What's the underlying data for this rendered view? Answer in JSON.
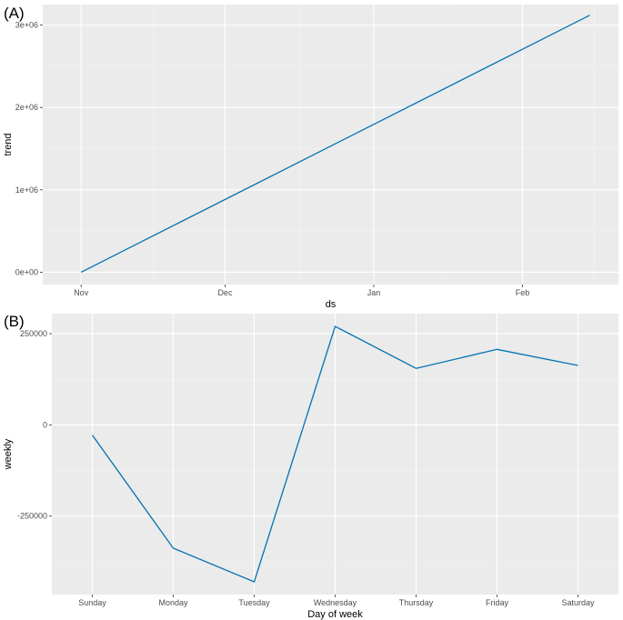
{
  "panels": {
    "a_label": "(A)",
    "b_label": "(B)"
  },
  "chart_data": [
    {
      "type": "line",
      "panel": "(A)",
      "xlabel": "ds",
      "ylabel": "trend",
      "x_tick_labels": [
        "Nov",
        "Dec",
        "Jan",
        "Feb"
      ],
      "x_tick_dates": [
        "2019-11-01",
        "2019-12-01",
        "2020-01-01",
        "2020-02-01"
      ],
      "x_range": [
        "2019-10-24",
        "2020-02-21"
      ],
      "y_tick_values": [
        0,
        1000000,
        2000000,
        3000000
      ],
      "y_tick_labels": [
        "0e+00",
        "1e+06",
        "2e+06",
        "3e+06"
      ],
      "ylim": [
        -150000,
        3250000
      ],
      "grid": true,
      "color": "#0072B2",
      "x": [
        "2019-11-01",
        "2020-02-15"
      ],
      "y": [
        0,
        3120000
      ]
    },
    {
      "type": "line",
      "panel": "(B)",
      "xlabel": "Day of week",
      "ylabel": "weekly",
      "categories": [
        "Sunday",
        "Monday",
        "Tuesday",
        "Wednesday",
        "Thursday",
        "Friday",
        "Saturday"
      ],
      "values": [
        -28000,
        -338000,
        -430000,
        270000,
        155000,
        207000,
        163000
      ],
      "y_tick_values": [
        -250000,
        0,
        250000
      ],
      "y_tick_labels": [
        "-250000",
        "0",
        "250000"
      ],
      "ylim": [
        -465000,
        305000
      ],
      "grid": true,
      "color": "#0072B2"
    }
  ]
}
